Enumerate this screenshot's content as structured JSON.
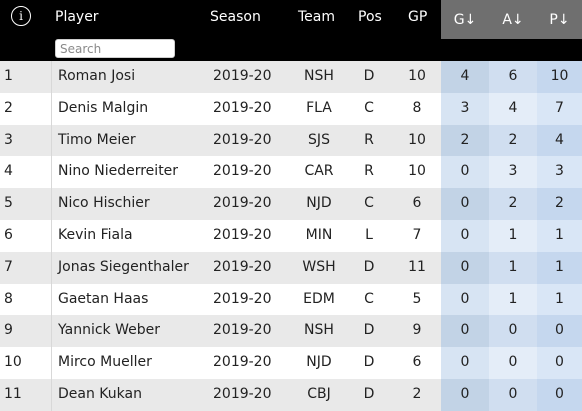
{
  "header": {
    "info_icon": "i",
    "player": "Player",
    "season": "Season",
    "team": "Team",
    "pos": "Pos",
    "gp": "GP",
    "g": "G↓",
    "a": "A↓",
    "p": "P↓",
    "search_placeholder": "Search"
  },
  "rows": [
    {
      "rank": "1",
      "player": "Roman Josi",
      "season": "2019-20",
      "team": "NSH",
      "pos": "D",
      "gp": "10",
      "g": "4",
      "a": "6",
      "p": "10"
    },
    {
      "rank": "2",
      "player": "Denis Malgin",
      "season": "2019-20",
      "team": "FLA",
      "pos": "C",
      "gp": "8",
      "g": "3",
      "a": "4",
      "p": "7"
    },
    {
      "rank": "3",
      "player": "Timo Meier",
      "season": "2019-20",
      "team": "SJS",
      "pos": "R",
      "gp": "10",
      "g": "2",
      "a": "2",
      "p": "4"
    },
    {
      "rank": "4",
      "player": "Nino Niederreiter",
      "season": "2019-20",
      "team": "CAR",
      "pos": "R",
      "gp": "10",
      "g": "0",
      "a": "3",
      "p": "3"
    },
    {
      "rank": "5",
      "player": "Nico Hischier",
      "season": "2019-20",
      "team": "NJD",
      "pos": "C",
      "gp": "6",
      "g": "0",
      "a": "2",
      "p": "2"
    },
    {
      "rank": "6",
      "player": "Kevin Fiala",
      "season": "2019-20",
      "team": "MIN",
      "pos": "L",
      "gp": "7",
      "g": "0",
      "a": "1",
      "p": "1"
    },
    {
      "rank": "7",
      "player": "Jonas Siegenthaler",
      "season": "2019-20",
      "team": "WSH",
      "pos": "D",
      "gp": "11",
      "g": "0",
      "a": "1",
      "p": "1"
    },
    {
      "rank": "8",
      "player": "Gaetan Haas",
      "season": "2019-20",
      "team": "EDM",
      "pos": "C",
      "gp": "5",
      "g": "0",
      "a": "1",
      "p": "1"
    },
    {
      "rank": "9",
      "player": "Yannick Weber",
      "season": "2019-20",
      "team": "NSH",
      "pos": "D",
      "gp": "9",
      "g": "0",
      "a": "0",
      "p": "0"
    },
    {
      "rank": "10",
      "player": "Mirco Mueller",
      "season": "2019-20",
      "team": "NJD",
      "pos": "D",
      "gp": "6",
      "g": "0",
      "a": "0",
      "p": "0"
    },
    {
      "rank": "11",
      "player": "Dean Kukan",
      "season": "2019-20",
      "team": "CBJ",
      "pos": "D",
      "gp": "2",
      "g": "0",
      "a": "0",
      "p": "0"
    }
  ],
  "colors": {
    "header_bg": "#000000",
    "sort_header_bg": "#6f6f6f",
    "row_stripe": "#e9e9e9",
    "highlight_col": "#c2d3e6"
  }
}
